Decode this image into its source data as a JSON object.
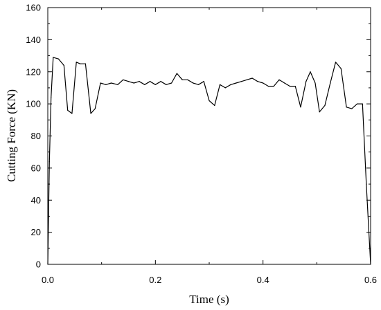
{
  "chart_data": {
    "type": "line",
    "xlabel": "Time (s)",
    "ylabel": "Cutting Force (KN)",
    "xlim": [
      0,
      0.6
    ],
    "ylim": [
      0,
      160
    ],
    "xticks": [
      0.0,
      0.2,
      0.4,
      0.6
    ],
    "xtick_labels": [
      "0.0",
      "0.2",
      "0.4",
      "0.6"
    ],
    "yticks": [
      0,
      20,
      40,
      60,
      80,
      100,
      120,
      140,
      160
    ],
    "ytick_labels": [
      "0",
      "20",
      "40",
      "60",
      "80",
      "100",
      "120",
      "140",
      "160"
    ],
    "grid": false,
    "line_color": "#000000",
    "series": [
      {
        "x": [
          0.0,
          0.003,
          0.006,
          0.01,
          0.02,
          0.03,
          0.037,
          0.045,
          0.053,
          0.06,
          0.07,
          0.08,
          0.088,
          0.098,
          0.108,
          0.118,
          0.13,
          0.14,
          0.15,
          0.16,
          0.17,
          0.18,
          0.19,
          0.2,
          0.21,
          0.22,
          0.23,
          0.24,
          0.25,
          0.26,
          0.27,
          0.28,
          0.29,
          0.3,
          0.31,
          0.32,
          0.33,
          0.34,
          0.35,
          0.36,
          0.37,
          0.38,
          0.39,
          0.4,
          0.41,
          0.42,
          0.43,
          0.44,
          0.45,
          0.46,
          0.47,
          0.48,
          0.488,
          0.497,
          0.505,
          0.515,
          0.525,
          0.535,
          0.545,
          0.555,
          0.565,
          0.575,
          0.585,
          0.592,
          0.6
        ],
        "y": [
          0,
          64,
          104,
          129,
          128,
          124,
          96,
          94,
          126,
          125,
          125,
          94,
          97,
          113,
          112,
          113,
          112,
          115,
          114,
          113,
          114,
          112,
          114,
          112,
          114,
          112,
          113,
          119,
          115,
          115,
          113,
          112,
          114,
          102,
          99,
          112,
          110,
          112,
          113,
          114,
          115,
          116,
          114,
          113,
          111,
          111,
          115,
          113,
          111,
          111,
          98,
          114,
          120,
          113,
          95,
          99,
          113,
          126,
          122,
          98,
          97,
          100,
          100,
          50,
          0
        ]
      }
    ]
  }
}
